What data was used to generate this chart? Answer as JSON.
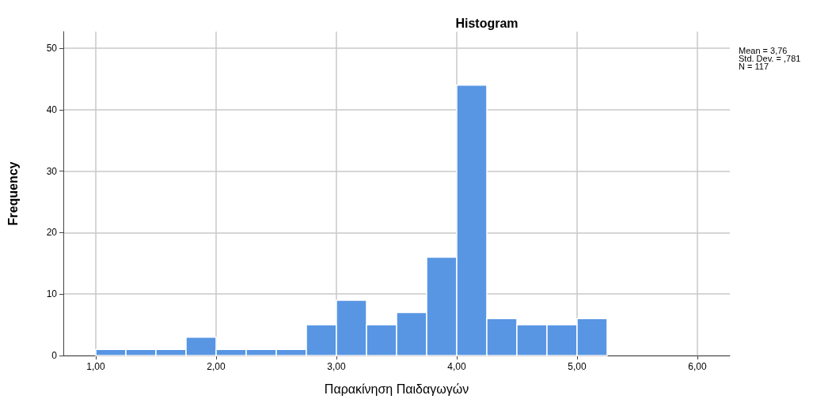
{
  "chart_data": {
    "type": "histogram",
    "title": "Histogram",
    "xlabel": "Παρακίνηση Παιδαγωγών",
    "ylabel": "Frequency",
    "bins": [
      1.0,
      1.25,
      1.5,
      1.75,
      2.0,
      2.25,
      2.5,
      2.75,
      3.0,
      3.25,
      3.5,
      3.75,
      4.0,
      4.25,
      4.5,
      4.75,
      5.0,
      5.25
    ],
    "values": [
      1,
      1,
      1,
      3,
      1,
      1,
      1,
      5,
      9,
      5,
      7,
      16,
      44,
      6,
      5,
      5,
      6
    ],
    "color": "#5896e4",
    "xlim": [
      0.73,
      6.27
    ],
    "xticks": [
      {
        "value": 1,
        "label": "1,00"
      },
      {
        "value": 2,
        "label": "2,00"
      },
      {
        "value": 3,
        "label": "3,00"
      },
      {
        "value": 4,
        "label": "4,00"
      },
      {
        "value": 5,
        "label": "5,00"
      },
      {
        "value": 6,
        "label": "6,00"
      }
    ],
    "ylim": [
      0,
      52.7
    ],
    "yticks": [
      0,
      10,
      20,
      30,
      40,
      50
    ],
    "grid": true,
    "annotations": [
      "Mean = 3,76",
      "Std. Dev. = ,781",
      "N = 117"
    ]
  }
}
